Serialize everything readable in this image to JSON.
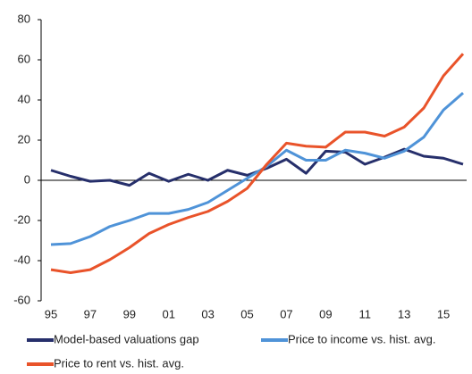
{
  "chart_data": {
    "type": "line",
    "categories": [
      "95",
      null,
      "97",
      null,
      "99",
      null,
      "01",
      null,
      "03",
      null,
      "05",
      null,
      "07",
      null,
      "09",
      null,
      "11",
      null,
      "13",
      null,
      "15",
      null
    ],
    "series": [
      {
        "name": "Model-based valuations gap",
        "color": "#262f6b",
        "values": [
          5,
          2,
          -0.5,
          0,
          -2.5,
          3.5,
          -0.5,
          3,
          0,
          5,
          2.5,
          6,
          10.5,
          3.5,
          14.5,
          14,
          8,
          11.5,
          15.5,
          12,
          11,
          8
        ]
      },
      {
        "name": "Price to income vs. hist. avg.",
        "color": "#4f93d8",
        "values": [
          -32,
          -31.5,
          -28,
          -23,
          -20,
          -16.5,
          -16.5,
          -14.5,
          -11,
          -5,
          1,
          7,
          15,
          10,
          10,
          15,
          13.5,
          11,
          14.5,
          21.5,
          35,
          43.5
        ]
      },
      {
        "name": "Price to rent vs. hist. avg.",
        "color": "#e9532a",
        "values": [
          -44.5,
          -46,
          -44.5,
          -39.5,
          -33.5,
          -26.5,
          -22,
          -18.5,
          -15.5,
          -10.5,
          -4,
          8,
          18.5,
          17,
          16.5,
          24,
          24,
          22,
          26.5,
          36,
          52,
          63
        ]
      }
    ],
    "ylim": [
      -60,
      80
    ],
    "yticks": [
      -60,
      -40,
      -20,
      0,
      20,
      40,
      60,
      80
    ]
  }
}
